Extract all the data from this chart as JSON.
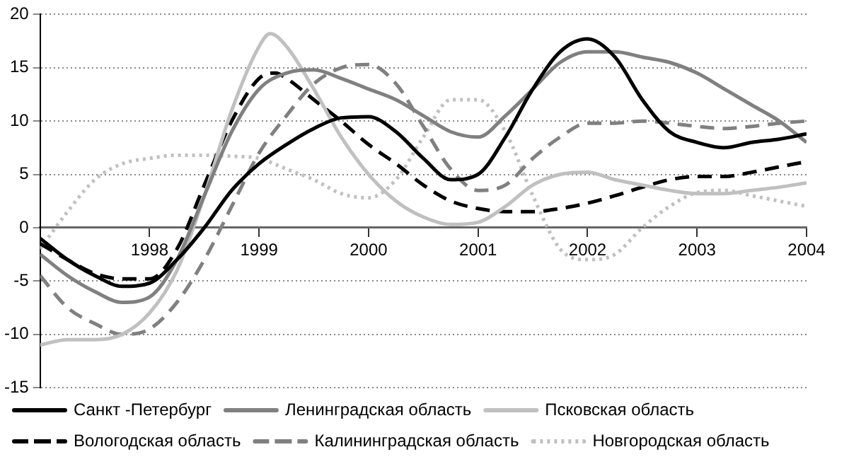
{
  "chart_data": {
    "type": "line",
    "xlim": [
      1997,
      2004
    ],
    "xticks": [
      1998,
      1999,
      2000,
      2001,
      2002,
      2003,
      2004
    ],
    "ylim": [
      -15,
      20
    ],
    "yticks": [
      -15,
      -10,
      -5,
      0,
      5,
      10,
      15,
      20
    ],
    "grid": "y",
    "legend": "bottom",
    "series": [
      {
        "name": "Санкт -Петербург",
        "color": "#000000",
        "line_style": "solid",
        "x": [
          1997,
          1997.25,
          1997.5,
          1997.75,
          1998,
          1998.25,
          1998.5,
          1998.75,
          1999,
          1999.25,
          1999.5,
          1999.75,
          2000,
          2000.25,
          2000.5,
          2000.75,
          2001,
          2001.25,
          2001.5,
          2001.75,
          2002,
          2002.25,
          2002.5,
          2002.75,
          2003,
          2003.25,
          2003.5,
          2003.75,
          2004
        ],
        "values": [
          -1,
          -3,
          -4.5,
          -5.5,
          -5.2,
          -3,
          0,
          3.5,
          6,
          7.8,
          9.3,
          10.3,
          10.4,
          9,
          6.5,
          4.5,
          5,
          8.5,
          13,
          16.5,
          17.7,
          16,
          12,
          9,
          8,
          7.5,
          8,
          8.3,
          8.8
        ]
      },
      {
        "name": "Ленинградская область",
        "color": "#808080",
        "line_style": "solid",
        "x": [
          1997,
          1997.25,
          1997.5,
          1997.75,
          1998,
          1998.25,
          1998.5,
          1998.75,
          1999,
          1999.25,
          1999.5,
          1999.75,
          2000,
          2000.25,
          2000.5,
          2000.75,
          2001,
          2001.25,
          2001.5,
          2001.75,
          2002,
          2002.25,
          2002.5,
          2002.75,
          2003,
          2003.25,
          2003.5,
          2003.75,
          2004
        ],
        "values": [
          -2.5,
          -4.5,
          -6,
          -7,
          -6.5,
          -3,
          3,
          9,
          13,
          14.5,
          14.8,
          14,
          13,
          12,
          10.5,
          9,
          8.5,
          10.5,
          13,
          15.5,
          16.5,
          16.5,
          16,
          15.5,
          14.5,
          13,
          11.5,
          10,
          8
        ]
      },
      {
        "name": "Псковская область",
        "color": "#c0c0c0",
        "line_style": "solid",
        "x": [
          1997,
          1997.25,
          1997.5,
          1997.75,
          1998,
          1998.25,
          1998.5,
          1998.75,
          1999,
          1999.1,
          1999.25,
          1999.5,
          1999.75,
          2000,
          2000.25,
          2000.5,
          2000.75,
          2001,
          2001.25,
          2001.5,
          2001.75,
          2002,
          2002.25,
          2002.5,
          2002.75,
          2003,
          2003.25,
          2003.5,
          2003.75,
          2004
        ],
        "values": [
          -11,
          -10.5,
          -10.5,
          -10,
          -8,
          -4,
          3,
          11,
          17,
          18.2,
          17,
          13,
          8.5,
          5,
          2.5,
          1,
          0.3,
          0.5,
          2,
          4,
          5,
          5.2,
          4.5,
          4,
          3.5,
          3.2,
          3.2,
          3.5,
          3.8,
          4.2
        ]
      },
      {
        "name": "Вологодская область",
        "color": "#000000",
        "line_style": "dashed",
        "x": [
          1997,
          1997.25,
          1997.5,
          1997.75,
          1998,
          1998.25,
          1998.5,
          1998.75,
          1999,
          1999.15,
          1999.25,
          1999.5,
          1999.75,
          2000,
          2000.25,
          2000.5,
          2000.75,
          2001,
          2001.25,
          2001.5,
          2001.75,
          2002,
          2002.25,
          2002.5,
          2002.75,
          2003,
          2003.25,
          2003.5,
          2003.75,
          2004
        ],
        "values": [
          -1.5,
          -3,
          -4.3,
          -4.8,
          -4.8,
          -2,
          4,
          10,
          14,
          14.5,
          14,
          12,
          10,
          7.8,
          6,
          4,
          2.5,
          1.8,
          1.5,
          1.5,
          1.8,
          2.3,
          3,
          3.8,
          4.5,
          4.8,
          4.8,
          5.2,
          5.7,
          6.2
        ]
      },
      {
        "name": "Калининградская область",
        "color": "#808080",
        "line_style": "dashed",
        "x": [
          1997,
          1997.25,
          1997.5,
          1997.75,
          1998,
          1998.25,
          1998.5,
          1998.75,
          1999,
          1999.25,
          1999.5,
          1999.75,
          2000,
          2000.25,
          2000.5,
          2000.75,
          2001,
          2001.25,
          2001.5,
          2001.75,
          2002,
          2002.25,
          2002.5,
          2002.75,
          2003,
          2003.25,
          2003.5,
          2003.75,
          2004
        ],
        "values": [
          -4.5,
          -7.5,
          -9,
          -10,
          -9.5,
          -7,
          -3,
          2,
          7,
          10.5,
          13.5,
          15,
          15.3,
          13.5,
          9.5,
          5.5,
          3.5,
          4,
          6.5,
          8.5,
          9.8,
          9.8,
          10,
          9.8,
          9.5,
          9.3,
          9.5,
          9.8,
          10
        ]
      },
      {
        "name": "Новгородская область",
        "color": "#c0c0c0",
        "line_style": "dotted",
        "x": [
          1997,
          1997.25,
          1997.5,
          1997.75,
          1998,
          1998.25,
          1998.5,
          1998.75,
          1999,
          1999.25,
          1999.5,
          1999.75,
          2000,
          2000.25,
          2000.5,
          2000.75,
          2001,
          2001.25,
          2001.5,
          2001.75,
          2002,
          2002.25,
          2002.5,
          2002.75,
          2003,
          2003.25,
          2003.5,
          2003.75,
          2004
        ],
        "values": [
          -2,
          1.5,
          4.5,
          6,
          6.5,
          6.8,
          6.8,
          6.7,
          6.5,
          5.5,
          4.5,
          3.2,
          2.8,
          4.5,
          8.5,
          12,
          12,
          9,
          3,
          -2,
          -3,
          -2.5,
          0,
          2,
          3.3,
          3.5,
          3,
          2.5,
          2
        ]
      }
    ]
  }
}
